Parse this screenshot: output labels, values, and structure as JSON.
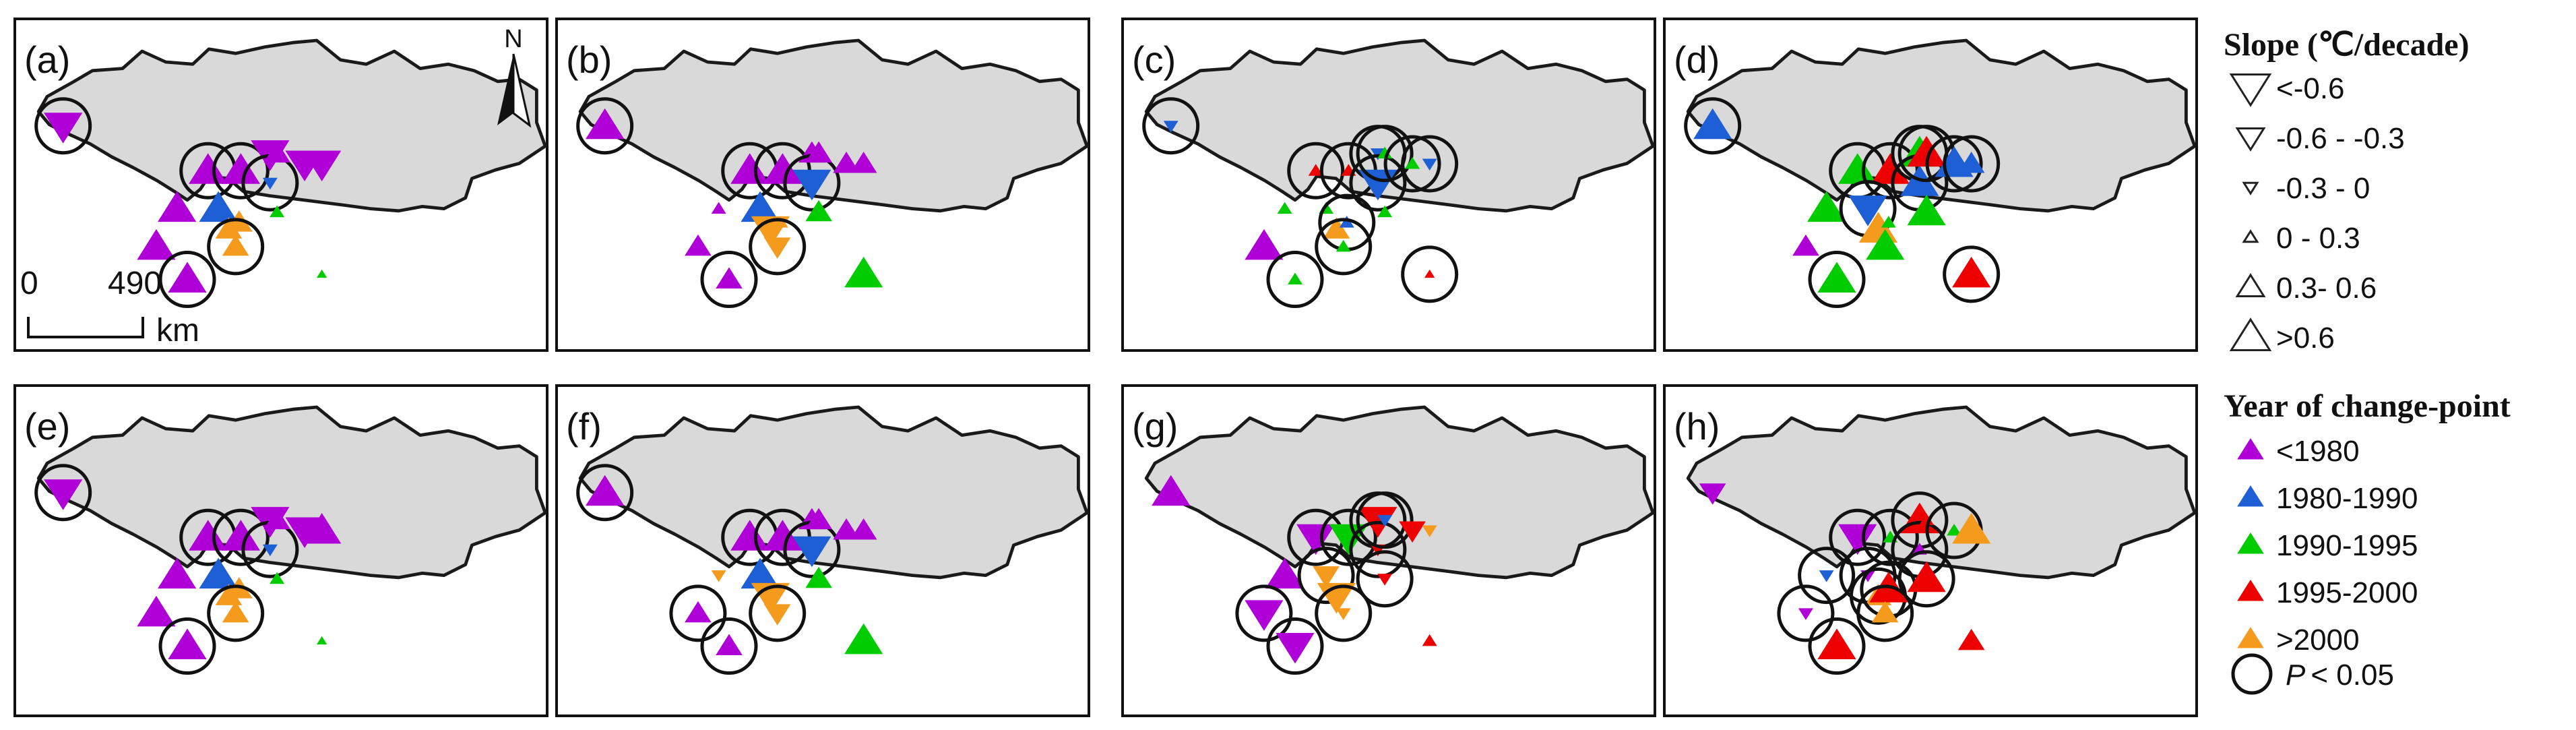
{
  "panels": [
    {
      "label": "(a)",
      "stations": [
        {
          "p": "W",
          "s": "down-l",
          "c": "c1",
          "sig": true
        },
        {
          "p": "A",
          "s": "up-l",
          "c": "c1",
          "sig": false
        },
        {
          "p": "B",
          "s": "up-l",
          "c": "c1",
          "sig": true
        },
        {
          "p": "C",
          "s": "up-l",
          "c": "c1",
          "sig": true
        },
        {
          "p": "D",
          "s": "down-l",
          "c": "c1",
          "sig": false
        },
        {
          "p": "E",
          "s": "down-s",
          "c": "c2",
          "sig": true
        },
        {
          "p": "F",
          "s": "up-m",
          "c": "c1",
          "sig": false
        },
        {
          "p": "G",
          "s": "down-l",
          "c": "c1",
          "sig": false
        },
        {
          "p": "H",
          "s": "down-l",
          "c": "c1",
          "sig": false
        },
        {
          "p": "I",
          "s": "up-l",
          "c": "c2",
          "sig": false
        },
        {
          "p": "J",
          "s": "up-m",
          "c": "c5",
          "sig": false
        },
        {
          "p": "K",
          "s": "up-m",
          "c": "c5",
          "sig": false
        },
        {
          "p": "L",
          "s": "up-s",
          "c": "c3",
          "sig": false
        },
        {
          "p": "M",
          "s": "up-l",
          "c": "c1",
          "sig": false
        },
        {
          "p": "N",
          "s": "up-m",
          "c": "c5",
          "sig": true
        },
        {
          "p": "O",
          "s": "up-l",
          "c": "c1",
          "sig": true
        },
        {
          "p": "P",
          "s": "up-xs",
          "c": "c3",
          "sig": false
        }
      ]
    },
    {
      "label": "(b)",
      "stations": [
        {
          "p": "W",
          "s": "up-l",
          "c": "c1",
          "sig": true
        },
        {
          "p": "A",
          "s": "up-s",
          "c": "c1",
          "sig": false
        },
        {
          "p": "B",
          "s": "up-l",
          "c": "c1",
          "sig": true
        },
        {
          "p": "C",
          "s": "up-l",
          "c": "c1",
          "sig": true
        },
        {
          "p": "D",
          "s": "up-m",
          "c": "c1",
          "sig": false
        },
        {
          "p": "E",
          "s": "down-l",
          "c": "c2",
          "sig": true
        },
        {
          "p": "F",
          "s": "up-m",
          "c": "c1",
          "sig": false
        },
        {
          "p": "G",
          "s": "up-m",
          "c": "c1",
          "sig": false
        },
        {
          "p": "H",
          "s": "up-m",
          "c": "c1",
          "sig": false
        },
        {
          "p": "I",
          "s": "up-l",
          "c": "c2",
          "sig": false
        },
        {
          "p": "J",
          "s": "down-l",
          "c": "c5",
          "sig": false
        },
        {
          "p": "K",
          "s": "up-s",
          "c": "c5",
          "sig": false
        },
        {
          "p": "L",
          "s": "up-m",
          "c": "c3",
          "sig": false
        },
        {
          "p": "M",
          "s": "up-m",
          "c": "c1",
          "sig": false
        },
        {
          "p": "N",
          "s": "down-m",
          "c": "c5",
          "sig": true
        },
        {
          "p": "O",
          "s": "up-m",
          "c": "c1",
          "sig": true
        },
        {
          "p": "P",
          "s": "up-l",
          "c": "c3",
          "sig": false
        }
      ]
    },
    {
      "label": "(c)",
      "stations": [
        {
          "p": "W",
          "s": "down-s",
          "c": "c2",
          "sig": true
        },
        {
          "p": "A",
          "s": "up-s",
          "c": "c3",
          "sig": false
        },
        {
          "p": "B",
          "s": "up-s",
          "c": "c4",
          "sig": true
        },
        {
          "p": "C",
          "s": "up-s",
          "c": "c4",
          "sig": true
        },
        {
          "p": "D",
          "s": "down-s",
          "c": "c2",
          "sig": true
        },
        {
          "p": "E",
          "s": "down-l",
          "c": "c2",
          "sig": true
        },
        {
          "p": "F",
          "s": "up-s",
          "c": "c3",
          "sig": true
        },
        {
          "p": "G",
          "s": "up-s",
          "c": "c3",
          "sig": true
        },
        {
          "p": "H",
          "s": "down-s",
          "c": "c2",
          "sig": true
        },
        {
          "p": "I",
          "s": "up-s",
          "c": "c3",
          "sig": false
        },
        {
          "p": "J",
          "s": "up-m",
          "c": "c5",
          "sig": false
        },
        {
          "p": "K",
          "s": "up-s",
          "c": "c2",
          "sig": true
        },
        {
          "p": "L",
          "s": "up-s",
          "c": "c3",
          "sig": false
        },
        {
          "p": "M",
          "s": "up-l",
          "c": "c1",
          "sig": false
        },
        {
          "p": "N",
          "s": "up-s",
          "c": "c3",
          "sig": true
        },
        {
          "p": "O",
          "s": "up-s",
          "c": "c3",
          "sig": true
        },
        {
          "p": "P",
          "s": "up-xs",
          "c": "c4",
          "sig": true
        }
      ]
    },
    {
      "label": "(d)",
      "stations": [
        {
          "p": "W",
          "s": "up-l",
          "c": "c2",
          "sig": true
        },
        {
          "p": "A",
          "s": "up-l",
          "c": "c3",
          "sig": false
        },
        {
          "p": "B",
          "s": "up-l",
          "c": "c3",
          "sig": true
        },
        {
          "p": "C",
          "s": "up-l",
          "c": "c4",
          "sig": true
        },
        {
          "p": "D",
          "s": "up-l",
          "c": "c3",
          "sig": true
        },
        {
          "p": "E",
          "s": "up-l",
          "c": "c2",
          "sig": true
        },
        {
          "p": "F",
          "s": "up-l",
          "c": "c4",
          "sig": true
        },
        {
          "p": "G",
          "s": "up-l",
          "c": "c2",
          "sig": true
        },
        {
          "p": "H",
          "s": "up-m",
          "c": "c2",
          "sig": true
        },
        {
          "p": "I",
          "s": "down-l",
          "c": "c2",
          "sig": true
        },
        {
          "p": "J",
          "s": "up-l",
          "c": "c5",
          "sig": false
        },
        {
          "p": "K",
          "s": "up-s",
          "c": "c3",
          "sig": false
        },
        {
          "p": "L",
          "s": "up-l",
          "c": "c3",
          "sig": false
        },
        {
          "p": "M",
          "s": "up-m",
          "c": "c1",
          "sig": false
        },
        {
          "p": "N",
          "s": "up-l",
          "c": "c3",
          "sig": false
        },
        {
          "p": "O",
          "s": "up-l",
          "c": "c3",
          "sig": true
        },
        {
          "p": "P",
          "s": "up-l",
          "c": "c4",
          "sig": true
        }
      ]
    },
    {
      "label": "(e)",
      "stations": [
        {
          "p": "W",
          "s": "down-l",
          "c": "c1",
          "sig": true
        },
        {
          "p": "A",
          "s": "up-l",
          "c": "c1",
          "sig": false
        },
        {
          "p": "B",
          "s": "up-l",
          "c": "c1",
          "sig": true
        },
        {
          "p": "C",
          "s": "up-l",
          "c": "c1",
          "sig": true
        },
        {
          "p": "D",
          "s": "down-l",
          "c": "c1",
          "sig": false
        },
        {
          "p": "E",
          "s": "down-s",
          "c": "c2",
          "sig": true
        },
        {
          "p": "F",
          "s": "up-m",
          "c": "c1",
          "sig": false
        },
        {
          "p": "G",
          "s": "down-l",
          "c": "c1",
          "sig": false
        },
        {
          "p": "H",
          "s": "up-l",
          "c": "c1",
          "sig": false
        },
        {
          "p": "I",
          "s": "up-l",
          "c": "c2",
          "sig": false
        },
        {
          "p": "J",
          "s": "up-m",
          "c": "c5",
          "sig": false
        },
        {
          "p": "K",
          "s": "up-m",
          "c": "c5",
          "sig": false
        },
        {
          "p": "L",
          "s": "up-s",
          "c": "c3",
          "sig": false
        },
        {
          "p": "M",
          "s": "up-l",
          "c": "c1",
          "sig": false
        },
        {
          "p": "N",
          "s": "up-m",
          "c": "c5",
          "sig": true
        },
        {
          "p": "O",
          "s": "up-l",
          "c": "c1",
          "sig": true
        },
        {
          "p": "P",
          "s": "up-xs",
          "c": "c3",
          "sig": false
        }
      ]
    },
    {
      "label": "(f)",
      "stations": [
        {
          "p": "W",
          "s": "up-l",
          "c": "c1",
          "sig": true
        },
        {
          "p": "A",
          "s": "down-s",
          "c": "c5",
          "sig": false
        },
        {
          "p": "B",
          "s": "up-l",
          "c": "c1",
          "sig": true
        },
        {
          "p": "C",
          "s": "up-l",
          "c": "c1",
          "sig": true
        },
        {
          "p": "D",
          "s": "up-m",
          "c": "c1",
          "sig": false
        },
        {
          "p": "E",
          "s": "down-l",
          "c": "c2",
          "sig": true
        },
        {
          "p": "F",
          "s": "up-m",
          "c": "c1",
          "sig": false
        },
        {
          "p": "G",
          "s": "up-m",
          "c": "c1",
          "sig": false
        },
        {
          "p": "H",
          "s": "up-m",
          "c": "c1",
          "sig": false
        },
        {
          "p": "I",
          "s": "up-l",
          "c": "c2",
          "sig": false
        },
        {
          "p": "J",
          "s": "down-l",
          "c": "c5",
          "sig": false
        },
        {
          "p": "K",
          "s": "down-s",
          "c": "c5",
          "sig": false
        },
        {
          "p": "L",
          "s": "up-m",
          "c": "c3",
          "sig": false
        },
        {
          "p": "M",
          "s": "up-m",
          "c": "c1",
          "sig": true
        },
        {
          "p": "N",
          "s": "down-m",
          "c": "c5",
          "sig": true
        },
        {
          "p": "O",
          "s": "up-m",
          "c": "c1",
          "sig": true
        },
        {
          "p": "P",
          "s": "up-l",
          "c": "c3",
          "sig": false
        }
      ]
    },
    {
      "label": "(g)",
      "stations": [
        {
          "p": "W",
          "s": "up-l",
          "c": "c1",
          "sig": false
        },
        {
          "p": "A",
          "s": "up-l",
          "c": "c1",
          "sig": false
        },
        {
          "p": "B",
          "s": "down-l",
          "c": "c1",
          "sig": true
        },
        {
          "p": "C",
          "s": "down-l",
          "c": "c3",
          "sig": true
        },
        {
          "p": "D",
          "s": "down-l",
          "c": "c4",
          "sig": true
        },
        {
          "p": "E",
          "s": "down-s",
          "c": "c4",
          "sig": true
        },
        {
          "p": "F",
          "s": "down-s",
          "c": "c2",
          "sig": true
        },
        {
          "p": "G",
          "s": "down-m",
          "c": "c4",
          "sig": false
        },
        {
          "p": "H",
          "s": "down-s",
          "c": "c5",
          "sig": false
        },
        {
          "p": "I",
          "s": "down-m",
          "c": "c5",
          "sig": true
        },
        {
          "p": "J",
          "s": "down-l",
          "c": "c5",
          "sig": false
        },
        {
          "p": "K",
          "s": "down-s",
          "c": "c5",
          "sig": false
        },
        {
          "p": "L",
          "s": "down-s",
          "c": "c4",
          "sig": true
        },
        {
          "p": "M",
          "s": "down-l",
          "c": "c1",
          "sig": true
        },
        {
          "p": "N",
          "s": "down-s",
          "c": "c5",
          "sig": true
        },
        {
          "p": "O",
          "s": "down-l",
          "c": "c1",
          "sig": true
        },
        {
          "p": "P",
          "s": "up-s",
          "c": "c4",
          "sig": false
        }
      ]
    },
    {
      "label": "(h)",
      "stations": [
        {
          "p": "W",
          "s": "down-m",
          "c": "c1",
          "sig": false
        },
        {
          "p": "A",
          "s": "down-s",
          "c": "c2",
          "sig": true
        },
        {
          "p": "B",
          "s": "down-l",
          "c": "c1",
          "sig": true
        },
        {
          "p": "C",
          "s": "up-s",
          "c": "c3",
          "sig": true
        },
        {
          "p": "D",
          "s": "up-l",
          "c": "c4",
          "sig": true
        },
        {
          "p": "E",
          "s": "up-s",
          "c": "c1",
          "sig": true
        },
        {
          "p": "F",
          "s": "up-s",
          "c": "c4",
          "sig": false
        },
        {
          "p": "G",
          "s": "up-s",
          "c": "c3",
          "sig": true
        },
        {
          "p": "H",
          "s": "up-l",
          "c": "c5",
          "sig": false
        },
        {
          "p": "I",
          "s": "down-s",
          "c": "c1",
          "sig": true
        },
        {
          "p": "J",
          "s": "up-m",
          "c": "c5",
          "sig": true
        },
        {
          "p": "K",
          "s": "up-l",
          "c": "c4",
          "sig": true
        },
        {
          "p": "L",
          "s": "up-l",
          "c": "c4",
          "sig": true
        },
        {
          "p": "M",
          "s": "down-s",
          "c": "c1",
          "sig": true
        },
        {
          "p": "N",
          "s": "up-m",
          "c": "c5",
          "sig": true
        },
        {
          "p": "O",
          "s": "up-l",
          "c": "c4",
          "sig": true
        },
        {
          "p": "P",
          "s": "up-m",
          "c": "c4",
          "sig": false
        }
      ]
    }
  ],
  "north_arrow": {
    "label": "N"
  },
  "scale_bar": {
    "start_label": "0",
    "end_label": "490",
    "unit": "km"
  },
  "legend": {
    "slope_title": "Slope (℃/decade)",
    "slope_classes": [
      {
        "label": "<-0.6",
        "dir": "down",
        "size": "xl"
      },
      {
        "label": "-0.6 - -0.3",
        "dir": "down",
        "size": "l"
      },
      {
        "label": "-0.3 - 0",
        "dir": "down",
        "size": "s"
      },
      {
        "label": "0 - 0.3",
        "dir": "up",
        "size": "s"
      },
      {
        "label": "0.3- 0.6",
        "dir": "up",
        "size": "l"
      },
      {
        "label": ">0.6",
        "dir": "up",
        "size": "xl"
      }
    ],
    "year_title": "Year of change-point",
    "year_classes": [
      {
        "label": "<1980",
        "color": "#b000d8"
      },
      {
        "label": "1980-1990",
        "color": "#1f5fd6"
      },
      {
        "label": "1990-1995",
        "color": "#00cc00"
      },
      {
        "label": "1995-2000",
        "color": "#ee0000"
      },
      {
        "label": ">2000",
        "color": "#f49b1e"
      }
    ],
    "significance_p": "P",
    "significance_label": "< 0.05"
  },
  "colors": {
    "c1": "#b000d8",
    "c2": "#1f5fd6",
    "c3": "#00cc00",
    "c4": "#ee0000",
    "c5": "#f49b1e"
  }
}
